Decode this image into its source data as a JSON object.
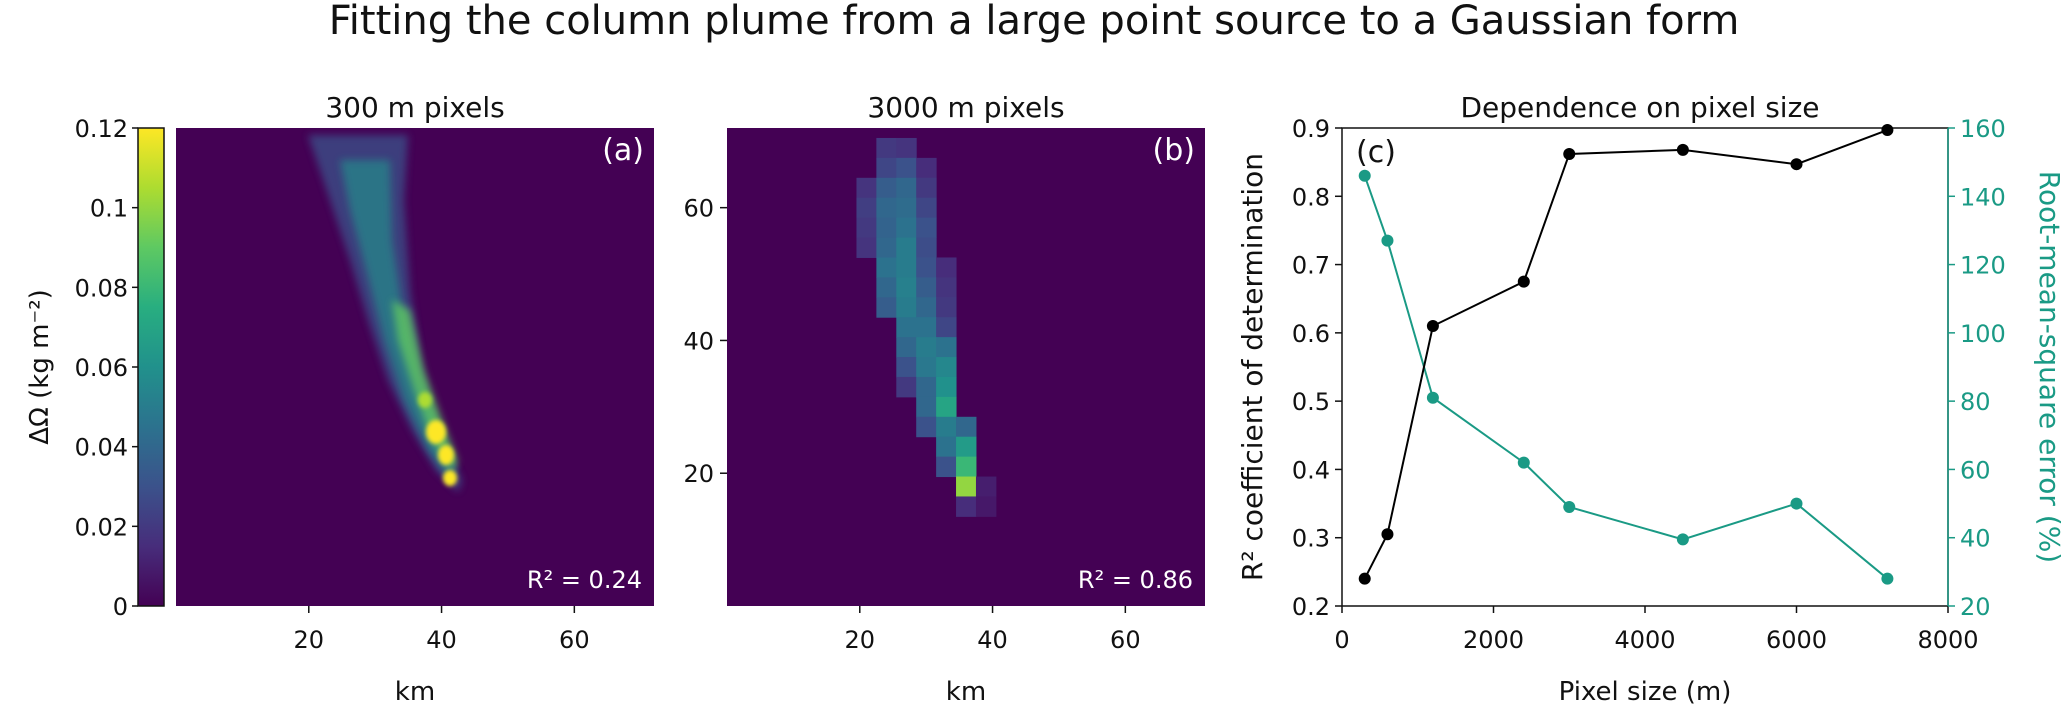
{
  "figure_title": "Fitting the column plume from a large point source to a Gaussian form",
  "panel_a": {
    "title": "300 m pixels",
    "letter": "(a)",
    "r2_label": "R² = 0.24",
    "xlabel": "km",
    "xticks": [
      "20",
      "40",
      "60"
    ]
  },
  "panel_b": {
    "title": "3000 m pixels",
    "letter": "(b)",
    "r2_label": "R² = 0.86",
    "xlabel": "km",
    "xticks": [
      "20",
      "40",
      "60"
    ],
    "yticks": [
      "20",
      "40",
      "60"
    ]
  },
  "colorbar": {
    "label": "ΔΩ (kg m⁻²)",
    "ticks": [
      "0",
      "0.02",
      "0.04",
      "0.06",
      "0.08",
      "0.1",
      "0.12"
    ]
  },
  "panel_c": {
    "title": "Dependence on pixel size",
    "letter": "(c)"
  },
  "colors": {
    "background_field": "#440154",
    "series_r2": "#000000",
    "series_rmse": "#1a9a85"
  },
  "chart_data": [
    {
      "type": "heatmap",
      "panel": "a",
      "xlabel": "km",
      "xlim": [
        0,
        72
      ],
      "ylim": [
        0,
        72
      ],
      "value_range": [
        0,
        0.12
      ],
      "colormap": "viridis",
      "plume": {
        "description_points_km": [
          [
            26,
            70
          ],
          [
            27,
            60
          ],
          [
            28,
            50
          ],
          [
            30,
            40
          ],
          [
            33,
            30
          ],
          [
            35,
            22
          ],
          [
            36,
            19
          ]
        ],
        "peak_value": 0.12
      }
    },
    {
      "type": "heatmap",
      "panel": "b",
      "xlabel": "km",
      "xlim": [
        0,
        72
      ],
      "ylim": [
        0,
        72
      ],
      "value_range": [
        0,
        0.12
      ],
      "colormap": "viridis",
      "cell_size_km": 3,
      "cells": [
        {
          "x": 24,
          "y": 69,
          "v": 0.02
        },
        {
          "x": 27,
          "y": 69,
          "v": 0.018
        },
        {
          "x": 24,
          "y": 66,
          "v": 0.025
        },
        {
          "x": 27,
          "y": 66,
          "v": 0.03
        },
        {
          "x": 30,
          "y": 66,
          "v": 0.015
        },
        {
          "x": 21,
          "y": 63,
          "v": 0.018
        },
        {
          "x": 24,
          "y": 63,
          "v": 0.035
        },
        {
          "x": 27,
          "y": 63,
          "v": 0.04
        },
        {
          "x": 30,
          "y": 63,
          "v": 0.02
        },
        {
          "x": 21,
          "y": 60,
          "v": 0.022
        },
        {
          "x": 24,
          "y": 60,
          "v": 0.04
        },
        {
          "x": 27,
          "y": 60,
          "v": 0.042
        },
        {
          "x": 30,
          "y": 60,
          "v": 0.025
        },
        {
          "x": 21,
          "y": 57,
          "v": 0.02
        },
        {
          "x": 24,
          "y": 57,
          "v": 0.038
        },
        {
          "x": 27,
          "y": 57,
          "v": 0.045
        },
        {
          "x": 30,
          "y": 57,
          "v": 0.03
        },
        {
          "x": 21,
          "y": 54,
          "v": 0.018
        },
        {
          "x": 24,
          "y": 54,
          "v": 0.04
        },
        {
          "x": 27,
          "y": 54,
          "v": 0.05
        },
        {
          "x": 30,
          "y": 54,
          "v": 0.028
        },
        {
          "x": 24,
          "y": 51,
          "v": 0.045
        },
        {
          "x": 27,
          "y": 51,
          "v": 0.05
        },
        {
          "x": 30,
          "y": 51,
          "v": 0.03
        },
        {
          "x": 33,
          "y": 51,
          "v": 0.015
        },
        {
          "x": 24,
          "y": 48,
          "v": 0.04
        },
        {
          "x": 27,
          "y": 48,
          "v": 0.052
        },
        {
          "x": 30,
          "y": 48,
          "v": 0.035
        },
        {
          "x": 33,
          "y": 48,
          "v": 0.018
        },
        {
          "x": 24,
          "y": 45,
          "v": 0.035
        },
        {
          "x": 27,
          "y": 45,
          "v": 0.05
        },
        {
          "x": 30,
          "y": 45,
          "v": 0.04
        },
        {
          "x": 33,
          "y": 45,
          "v": 0.02
        },
        {
          "x": 27,
          "y": 42,
          "v": 0.045
        },
        {
          "x": 30,
          "y": 42,
          "v": 0.045
        },
        {
          "x": 33,
          "y": 42,
          "v": 0.025
        },
        {
          "x": 27,
          "y": 39,
          "v": 0.04
        },
        {
          "x": 30,
          "y": 39,
          "v": 0.05
        },
        {
          "x": 33,
          "y": 39,
          "v": 0.045
        },
        {
          "x": 27,
          "y": 36,
          "v": 0.03
        },
        {
          "x": 30,
          "y": 36,
          "v": 0.048
        },
        {
          "x": 33,
          "y": 36,
          "v": 0.055
        },
        {
          "x": 27,
          "y": 33,
          "v": 0.02
        },
        {
          "x": 30,
          "y": 33,
          "v": 0.04
        },
        {
          "x": 33,
          "y": 33,
          "v": 0.06
        },
        {
          "x": 30,
          "y": 30,
          "v": 0.04
        },
        {
          "x": 33,
          "y": 30,
          "v": 0.07
        },
        {
          "x": 30,
          "y": 27,
          "v": 0.03
        },
        {
          "x": 33,
          "y": 27,
          "v": 0.05
        },
        {
          "x": 36,
          "y": 27,
          "v": 0.04
        },
        {
          "x": 33,
          "y": 24,
          "v": 0.045
        },
        {
          "x": 36,
          "y": 24,
          "v": 0.065
        },
        {
          "x": 33,
          "y": 21,
          "v": 0.03
        },
        {
          "x": 36,
          "y": 21,
          "v": 0.08
        },
        {
          "x": 36,
          "y": 18,
          "v": 0.1
        },
        {
          "x": 39,
          "y": 18,
          "v": 0.01
        },
        {
          "x": 36,
          "y": 15,
          "v": 0.015
        },
        {
          "x": 39,
          "y": 15,
          "v": 0.008
        }
      ]
    },
    {
      "type": "line",
      "panel": "c",
      "title": "Dependence on pixel size",
      "xlabel": "Pixel size (m)",
      "xlim": [
        0,
        8000
      ],
      "xticks": [
        "0",
        "2000",
        "4000",
        "6000",
        "8000"
      ],
      "x": [
        300,
        600,
        1200,
        2400,
        3000,
        4500,
        6000,
        7200
      ],
      "series": [
        {
          "name": "R² coefficient of determination",
          "axis": "left",
          "ylabel": "R² coefficient of determination",
          "ylim": [
            0.2,
            0.9
          ],
          "yticks": [
            "0.2",
            "0.3",
            "0.4",
            "0.5",
            "0.6",
            "0.7",
            "0.8",
            "0.9"
          ],
          "values": [
            0.24,
            0.305,
            0.61,
            0.675,
            0.862,
            0.868,
            0.847,
            0.897
          ]
        },
        {
          "name": "Root-mean-square error (%)",
          "axis": "right",
          "ylabel": "Root-mean-square error (%)",
          "ylim": [
            20,
            160
          ],
          "yticks": [
            "20",
            "40",
            "60",
            "80",
            "100",
            "120",
            "140",
            "160"
          ],
          "values": [
            146,
            127,
            81,
            62,
            49,
            39.5,
            50,
            28
          ]
        }
      ]
    }
  ]
}
